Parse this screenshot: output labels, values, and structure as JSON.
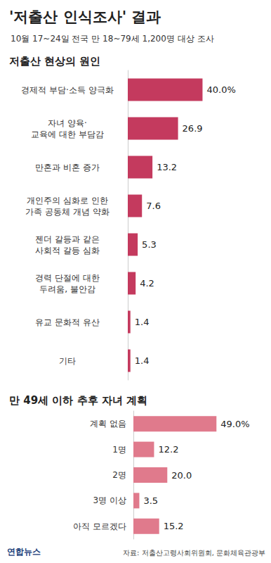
{
  "title": "'저출산 인식조사' 결과",
  "subtitle": "10월 17~24일 전국 만 18~79세 1,200명 대상 조사",
  "source": "자료: 저출산고령사회위원회, 문화체육관광부",
  "credit": "연합뉴스",
  "chart_data": [
    {
      "type": "bar",
      "title": "저출산 현상의 원인",
      "orientation": "horizontal",
      "categories": [
        "경제적 부담·소득 양극화",
        "자녀 양육·\n교육에 대한 부담감",
        "만혼과 비혼 증가",
        "개인주의 심화로 인한\n가족 공동체 개념 약화",
        "젠더 갈등과 같은\n사회적 갈등 심화",
        "경력 단절에 대한\n두려움, 불안감",
        "유교 문화적 유산",
        "기타"
      ],
      "values": [
        40.0,
        26.9,
        13.2,
        7.6,
        5.3,
        4.2,
        1.4,
        1.4
      ],
      "value_labels": [
        "40.0%",
        "26.9",
        "13.2",
        "7.6",
        "5.3",
        "4.2",
        "1.4",
        "1.4"
      ],
      "color": "#c43a5e",
      "xlim": [
        0,
        65
      ],
      "grid": false,
      "data_labels": true,
      "tick_labels": "y"
    },
    {
      "type": "bar",
      "title": "만 49세 이하 추후 자녀 계획",
      "orientation": "horizontal",
      "categories": [
        "계획 없음",
        "1명",
        "2명",
        "3명 이상",
        "아직 모르겠다"
      ],
      "values": [
        49.0,
        12.2,
        20.0,
        3.5,
        15.2
      ],
      "value_labels": [
        "49.0%",
        "12.2",
        "20.0",
        "3.5",
        "15.2"
      ],
      "color": "#e07a8c",
      "xlim": [
        0,
        70
      ],
      "grid": false,
      "data_labels": true,
      "tick_labels": "y"
    }
  ]
}
